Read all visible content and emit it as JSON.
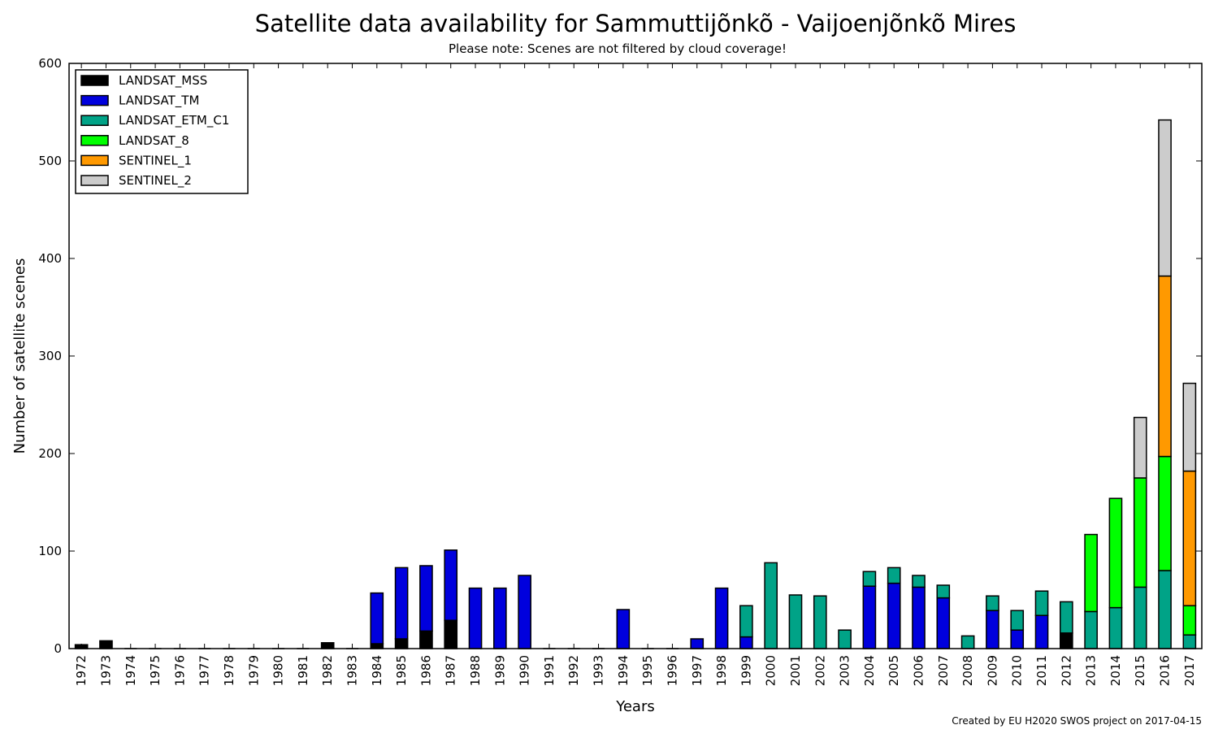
{
  "chart_data": {
    "type": "bar",
    "stacked": true,
    "title": "Satellite data availability for Sammuttijõnkõ - Vaijoenjõnkõ Mires",
    "subtitle": "Please note: Scenes are not filtered by cloud coverage!",
    "xlabel": "Years",
    "ylabel": "Number of satellite scenes",
    "ylim": [
      0,
      600
    ],
    "yticks": [
      0,
      100,
      200,
      300,
      400,
      500,
      600
    ],
    "legend_position": "top-left",
    "footer": "Created by EU H2020 SWOS project on 2017-04-15",
    "categories": [
      "1972",
      "1973",
      "1974",
      "1975",
      "1976",
      "1977",
      "1978",
      "1979",
      "1980",
      "1981",
      "1982",
      "1983",
      "1984",
      "1985",
      "1986",
      "1987",
      "1988",
      "1989",
      "1990",
      "1991",
      "1992",
      "1993",
      "1994",
      "1995",
      "1996",
      "1997",
      "1998",
      "1999",
      "2000",
      "2001",
      "2002",
      "2003",
      "2004",
      "2005",
      "2006",
      "2007",
      "2008",
      "2009",
      "2010",
      "2011",
      "2012",
      "2013",
      "2014",
      "2015",
      "2016",
      "2017"
    ],
    "series": [
      {
        "name": "LANDSAT_MSS",
        "color": "#000000",
        "values": [
          4,
          8,
          0,
          0,
          0,
          0,
          0,
          0,
          0,
          0,
          6,
          0,
          5,
          10,
          18,
          29,
          0,
          0,
          0,
          0,
          0,
          0,
          0,
          0,
          0,
          0,
          0,
          0,
          0,
          0,
          0,
          0,
          0,
          0,
          0,
          0,
          0,
          0,
          0,
          0,
          16,
          0,
          0,
          0,
          0,
          0
        ]
      },
      {
        "name": "LANDSAT_TM",
        "color": "#0000dd",
        "values": [
          0,
          0,
          0,
          0,
          0,
          0,
          0,
          0,
          0,
          0,
          0,
          0,
          52,
          73,
          67,
          72,
          62,
          62,
          75,
          0,
          0,
          0,
          40,
          0,
          0,
          10,
          62,
          12,
          0,
          0,
          0,
          0,
          64,
          67,
          63,
          52,
          0,
          39,
          19,
          34,
          0,
          0,
          0,
          0,
          0,
          0
        ]
      },
      {
        "name": "LANDSAT_ETM_C1",
        "color": "#00a387",
        "values": [
          0,
          0,
          0,
          0,
          0,
          0,
          0,
          0,
          0,
          0,
          0,
          0,
          0,
          0,
          0,
          0,
          0,
          0,
          0,
          0,
          0,
          0,
          0,
          0,
          0,
          0,
          0,
          32,
          88,
          55,
          54,
          19,
          15,
          16,
          12,
          13,
          13,
          15,
          20,
          25,
          32,
          38,
          42,
          63,
          80,
          14
        ]
      },
      {
        "name": "LANDSAT_8",
        "color": "#00ff00",
        "values": [
          0,
          0,
          0,
          0,
          0,
          0,
          0,
          0,
          0,
          0,
          0,
          0,
          0,
          0,
          0,
          0,
          0,
          0,
          0,
          0,
          0,
          0,
          0,
          0,
          0,
          0,
          0,
          0,
          0,
          0,
          0,
          0,
          0,
          0,
          0,
          0,
          0,
          0,
          0,
          0,
          0,
          79,
          112,
          112,
          117,
          30
        ]
      },
      {
        "name": "SENTINEL_1",
        "color": "#ff9900",
        "values": [
          0,
          0,
          0,
          0,
          0,
          0,
          0,
          0,
          0,
          0,
          0,
          0,
          0,
          0,
          0,
          0,
          0,
          0,
          0,
          0,
          0,
          0,
          0,
          0,
          0,
          0,
          0,
          0,
          0,
          0,
          0,
          0,
          0,
          0,
          0,
          0,
          0,
          0,
          0,
          0,
          0,
          0,
          0,
          0,
          185,
          138
        ]
      },
      {
        "name": "SENTINEL_2",
        "color": "#cccccc",
        "values": [
          0,
          0,
          0,
          0,
          0,
          0,
          0,
          0,
          0,
          0,
          0,
          0,
          0,
          0,
          0,
          0,
          0,
          0,
          0,
          0,
          0,
          0,
          0,
          0,
          0,
          0,
          0,
          0,
          0,
          0,
          0,
          0,
          0,
          0,
          0,
          0,
          0,
          0,
          0,
          0,
          0,
          0,
          0,
          62,
          160,
          90
        ]
      }
    ]
  }
}
